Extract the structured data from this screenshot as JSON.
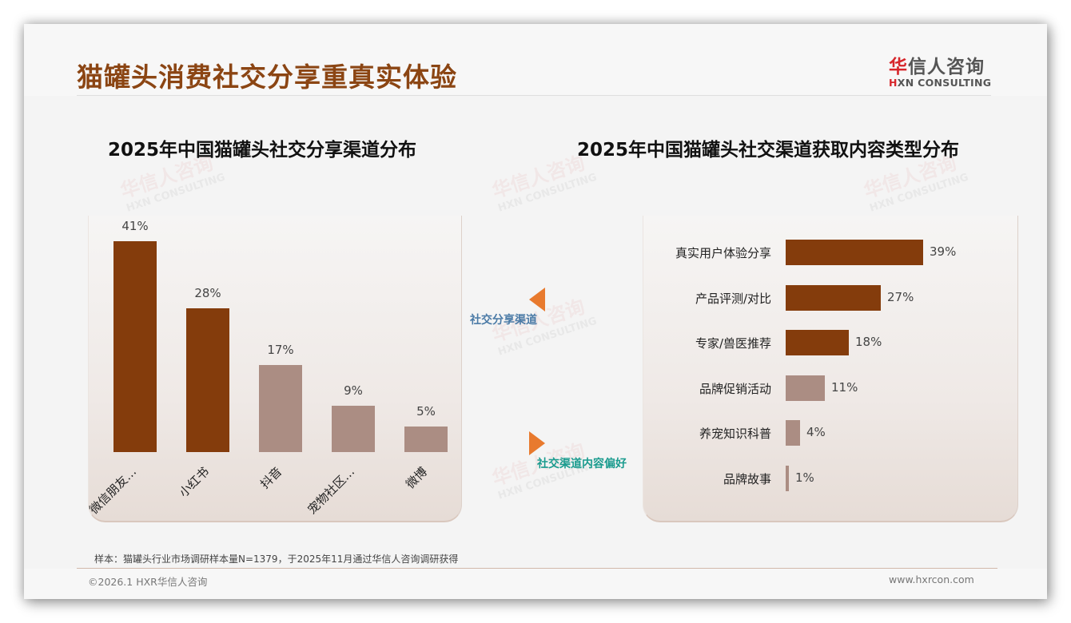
{
  "header": {
    "title": "猫罐头消费社交分享重真实体验",
    "logo": {
      "cn_accent": "华",
      "cn_rest": "信人咨询",
      "en_accent": "H",
      "en_rest": "XN CONSULTING"
    }
  },
  "colors": {
    "title": "#8b4513",
    "bar_primary": "#843c0c",
    "bar_secondary": "#ab8d83",
    "arrow": "#e87a2e",
    "annotation_1": "#4a7aa6",
    "annotation_2": "#1a9b8e"
  },
  "annotations": {
    "left_arrow_text": "社交分享渠道",
    "right_arrow_text": "社交渠道内容偏好"
  },
  "watermark": {
    "cn": "华信人咨询",
    "en": "HXN CONSULTING"
  },
  "chart_data": [
    {
      "type": "bar",
      "orientation": "vertical",
      "title": "2025年中国猫罐头社交分享渠道分布",
      "categories": [
        "微信朋友…",
        "小红书",
        "抖音",
        "宠物社区…",
        "微博"
      ],
      "values": [
        41,
        28,
        17,
        9,
        5
      ],
      "labels": [
        "41%",
        "28%",
        "17%",
        "9%",
        "5%"
      ],
      "highlight": [
        true,
        true,
        false,
        false,
        false
      ],
      "unit": "%",
      "xlabel": "",
      "ylabel": "",
      "grid": false,
      "legend": "none"
    },
    {
      "type": "bar",
      "orientation": "horizontal",
      "title": "2025年中国猫罐头社交渠道获取内容类型分布",
      "categories": [
        "真实用户体验分享",
        "产品评测/对比",
        "专家/兽医推荐",
        "品牌促销活动",
        "养宠知识科普",
        "品牌故事"
      ],
      "values": [
        39,
        27,
        18,
        11,
        4,
        1
      ],
      "labels": [
        "39%",
        "27%",
        "18%",
        "11%",
        "4%",
        "1%"
      ],
      "highlight": [
        true,
        true,
        true,
        false,
        false,
        false
      ],
      "unit": "%",
      "xlabel": "",
      "ylabel": "",
      "grid": false,
      "legend": "none"
    }
  ],
  "footer": {
    "footnote": "样本：猫罐头行业市场调研样本量N=1379，于2025年11月通过华信人咨询调研获得",
    "copyright": "©2026.1 HXR华信人咨询",
    "website": "www.hxrcon.com"
  }
}
